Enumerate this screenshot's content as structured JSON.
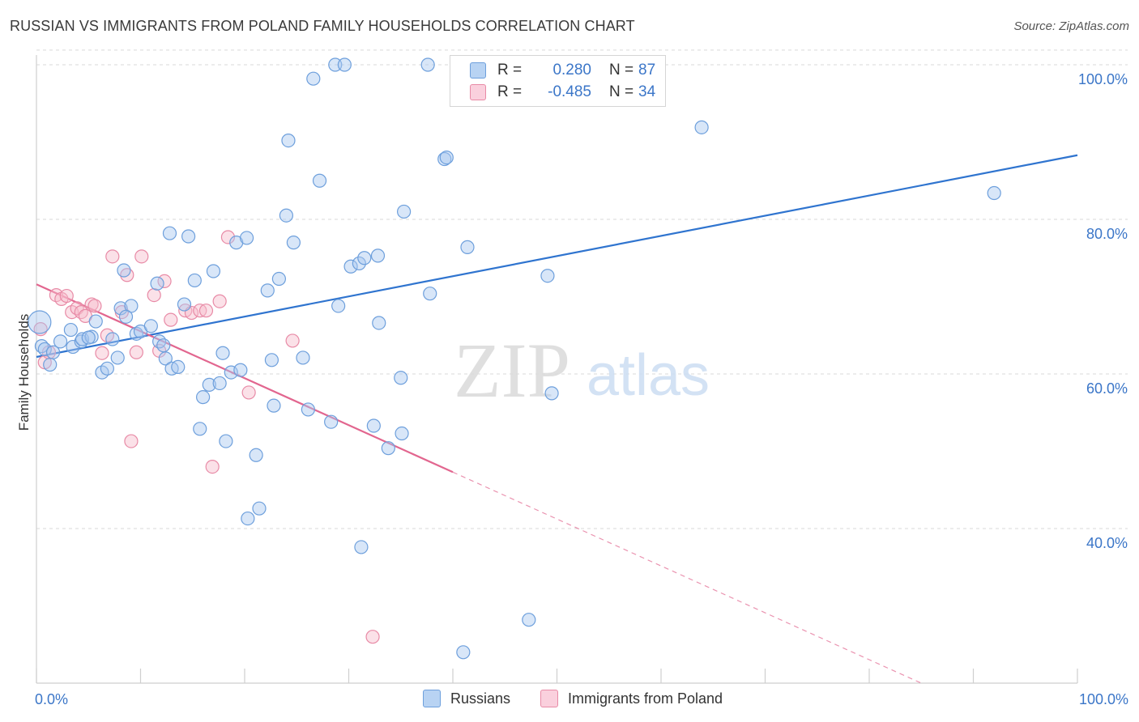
{
  "title": "RUSSIAN VS IMMIGRANTS FROM POLAND FAMILY HOUSEHOLDS CORRELATION CHART",
  "source": "Source: ZipAtlas.com",
  "watermark": {
    "zip": "ZIP",
    "atlas": "atlas"
  },
  "legend_top": {
    "rows": [
      {
        "r_key": "R =",
        "r_val": "0.280",
        "n_key": "N =",
        "n_val": "87"
      },
      {
        "r_key": "R =",
        "r_val": "-0.485",
        "n_key": "N =",
        "n_val": "34"
      }
    ]
  },
  "legend_bottom": {
    "series1": "Russians",
    "series2": "Immigrants from Poland"
  },
  "colors": {
    "blue_fill": "#a9c8ef",
    "blue_stroke": "#6d9fdc",
    "blue_line": "#2f74cf",
    "pink_fill": "#f6bccd",
    "pink_stroke": "#e88aa6",
    "pink_line": "#e2668f",
    "tick_label": "#3b76c8",
    "grid": "#d9d9d9"
  },
  "chart_data": {
    "type": "scatter",
    "title": "RUSSIAN VS IMMIGRANTS FROM POLAND FAMILY HOUSEHOLDS CORRELATION CHART",
    "xlabel": "",
    "ylabel": "Family Households",
    "xlim": [
      0,
      100
    ],
    "ylim": [
      20,
      103
    ],
    "x_tick_labels": [
      "0.0%",
      "100.0%"
    ],
    "y_ticks": [
      40,
      60,
      80,
      100
    ],
    "y_tick_labels": [
      "40.0%",
      "60.0%",
      "80.0%",
      "100.0%"
    ],
    "grid": "horizontal dashed",
    "legend": "top-center",
    "series": [
      {
        "name": "Russians",
        "r": 0.28,
        "n": 87,
        "trend": {
          "x": [
            0,
            100
          ],
          "y": [
            62.2,
            88.3
          ],
          "style": "solid"
        },
        "points": [
          [
            0.3,
            66.7
          ],
          [
            0.5,
            63.6
          ],
          [
            0.8,
            63.2
          ],
          [
            1.3,
            61.2
          ],
          [
            1.6,
            62.8
          ],
          [
            2.3,
            64.2
          ],
          [
            3.3,
            65.7
          ],
          [
            3.5,
            63.5
          ],
          [
            4.3,
            64.2
          ],
          [
            4.4,
            64.5
          ],
          [
            5.3,
            64.8
          ],
          [
            5.7,
            66.8
          ],
          [
            6.3,
            60.2
          ],
          [
            6.8,
            60.7
          ],
          [
            7.3,
            64.5
          ],
          [
            7.8,
            62.1
          ],
          [
            8.1,
            68.5
          ],
          [
            8.4,
            73.4
          ],
          [
            9.1,
            68.8
          ],
          [
            9.6,
            65.2
          ],
          [
            10.0,
            65.5
          ],
          [
            11.0,
            66.2
          ],
          [
            11.6,
            71.7
          ],
          [
            11.8,
            64.2
          ],
          [
            12.4,
            62.0
          ],
          [
            12.8,
            78.2
          ],
          [
            13.0,
            60.7
          ],
          [
            13.6,
            60.9
          ],
          [
            14.2,
            69.0
          ],
          [
            14.6,
            77.8
          ],
          [
            15.2,
            72.1
          ],
          [
            15.7,
            52.9
          ],
          [
            16.0,
            57.0
          ],
          [
            16.6,
            58.6
          ],
          [
            17.0,
            73.3
          ],
          [
            17.6,
            58.8
          ],
          [
            17.9,
            62.7
          ],
          [
            18.2,
            51.3
          ],
          [
            18.7,
            60.2
          ],
          [
            19.2,
            77.0
          ],
          [
            19.6,
            60.5
          ],
          [
            20.2,
            77.6
          ],
          [
            21.1,
            49.5
          ],
          [
            21.4,
            42.6
          ],
          [
            20.3,
            41.3
          ],
          [
            22.2,
            70.8
          ],
          [
            22.6,
            61.8
          ],
          [
            22.8,
            55.9
          ],
          [
            23.3,
            72.3
          ],
          [
            24.0,
            80.5
          ],
          [
            24.2,
            90.2
          ],
          [
            24.7,
            77.0
          ],
          [
            25.6,
            62.1
          ],
          [
            26.1,
            55.4
          ],
          [
            26.6,
            98.2
          ],
          [
            27.2,
            85.0
          ],
          [
            28.3,
            53.8
          ],
          [
            29.0,
            68.8
          ],
          [
            30.2,
            73.9
          ],
          [
            31.0,
            74.3
          ],
          [
            31.2,
            37.6
          ],
          [
            31.5,
            75.0
          ],
          [
            32.4,
            53.3
          ],
          [
            32.8,
            75.3
          ],
          [
            32.9,
            66.6
          ],
          [
            33.8,
            50.4
          ],
          [
            35.0,
            59.5
          ],
          [
            35.1,
            52.3
          ],
          [
            35.3,
            81.0
          ],
          [
            37.6,
            100.0
          ],
          [
            37.8,
            70.4
          ],
          [
            39.2,
            87.8
          ],
          [
            39.4,
            88.0
          ],
          [
            41.0,
            24.0
          ],
          [
            41.4,
            76.4
          ],
          [
            47.3,
            28.2
          ],
          [
            49.1,
            72.7
          ],
          [
            49.5,
            57.5
          ],
          [
            49.9,
            100.0
          ],
          [
            50.7,
            100.0
          ],
          [
            63.9,
            91.9
          ],
          [
            92.0,
            83.4
          ],
          [
            28.7,
            100.0
          ],
          [
            29.6,
            100.0
          ],
          [
            5.0,
            64.7
          ],
          [
            8.6,
            67.4
          ],
          [
            12.2,
            63.7
          ]
        ]
      },
      {
        "name": "Immigrants from Poland",
        "r": -0.485,
        "n": 34,
        "trend": {
          "x": [
            0,
            40
          ],
          "y": [
            71.6,
            47.3
          ],
          "style": "solid",
          "extended": {
            "x": [
              40,
              85
            ],
            "y": [
              47.3,
              20
            ],
            "style": "dashed"
          }
        },
        "points": [
          [
            0.4,
            65.8
          ],
          [
            0.8,
            61.5
          ],
          [
            1.2,
            62.8
          ],
          [
            1.9,
            70.2
          ],
          [
            2.4,
            69.7
          ],
          [
            2.9,
            70.1
          ],
          [
            3.4,
            68.0
          ],
          [
            3.9,
            68.5
          ],
          [
            4.3,
            68.0
          ],
          [
            4.7,
            67.5
          ],
          [
            5.3,
            69.0
          ],
          [
            5.6,
            68.8
          ],
          [
            6.3,
            62.7
          ],
          [
            6.8,
            65.0
          ],
          [
            7.3,
            75.2
          ],
          [
            8.2,
            68.0
          ],
          [
            8.7,
            72.8
          ],
          [
            9.1,
            51.3
          ],
          [
            9.6,
            62.8
          ],
          [
            10.1,
            75.2
          ],
          [
            11.3,
            70.2
          ],
          [
            11.8,
            63.0
          ],
          [
            12.3,
            72.0
          ],
          [
            12.9,
            67.0
          ],
          [
            14.3,
            68.2
          ],
          [
            14.9,
            67.9
          ],
          [
            15.7,
            68.2
          ],
          [
            16.3,
            68.2
          ],
          [
            16.9,
            48.0
          ],
          [
            17.6,
            69.4
          ],
          [
            18.4,
            77.7
          ],
          [
            20.4,
            57.6
          ],
          [
            24.6,
            64.3
          ],
          [
            32.3,
            26.0
          ]
        ]
      }
    ]
  }
}
